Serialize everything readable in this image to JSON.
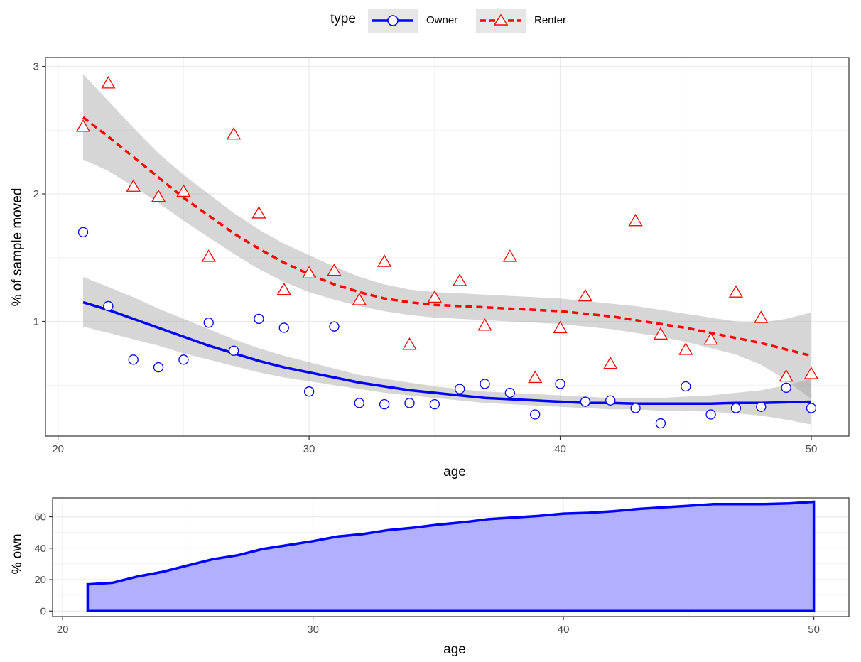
{
  "legend": {
    "title": "type",
    "items": [
      {
        "label": "Owner",
        "color": "#0000FF",
        "shape": "circle",
        "line": "solid"
      },
      {
        "label": "Renter",
        "color": "#FF0000",
        "shape": "triangle",
        "line": "dashed"
      }
    ],
    "placement": "top"
  },
  "chart_data": [
    {
      "type": "scatter",
      "xlabel": "age",
      "ylabel": "% of sample moved",
      "xlim": [
        19.5,
        51.5
      ],
      "ylim": [
        0.1,
        3.07
      ],
      "xticks": [
        20,
        30,
        40,
        50
      ],
      "yticks": [
        1,
        2,
        3
      ],
      "grid": true,
      "series": [
        {
          "name": "Owner",
          "color": "#0000FF",
          "marker": "circle",
          "x": [
            21,
            22,
            23,
            24,
            25,
            26,
            27,
            28,
            29,
            30,
            31,
            32,
            33,
            34,
            35,
            36,
            37,
            38,
            39,
            40,
            41,
            42,
            43,
            44,
            45,
            46,
            47,
            48,
            49,
            50
          ],
          "y": [
            1.7,
            1.12,
            0.7,
            0.64,
            0.7,
            0.99,
            0.77,
            1.02,
            0.95,
            0.45,
            0.96,
            0.36,
            0.35,
            0.36,
            0.35,
            0.47,
            0.51,
            0.44,
            0.27,
            0.51,
            0.37,
            0.38,
            0.32,
            0.2,
            0.49,
            0.27,
            0.32,
            0.33,
            0.48,
            0.32
          ],
          "smooth": {
            "x": [
              21,
              22,
              23,
              24,
              25,
              26,
              27,
              28,
              29,
              30,
              31,
              32,
              33,
              34,
              35,
              36,
              37,
              38,
              39,
              40,
              41,
              42,
              43,
              44,
              45,
              46,
              47,
              48,
              49,
              50
            ],
            "y": [
              1.15,
              1.09,
              1.02,
              0.95,
              0.88,
              0.81,
              0.75,
              0.69,
              0.64,
              0.6,
              0.56,
              0.52,
              0.49,
              0.46,
              0.44,
              0.42,
              0.4,
              0.39,
              0.38,
              0.37,
              0.36,
              0.36,
              0.355,
              0.355,
              0.355,
              0.355,
              0.36,
              0.36,
              0.365,
              0.37
            ],
            "lower": [
              0.96,
              0.91,
              0.86,
              0.81,
              0.75,
              0.7,
              0.65,
              0.6,
              0.56,
              0.53,
              0.5,
              0.47,
              0.44,
              0.42,
              0.4,
              0.38,
              0.36,
              0.35,
              0.34,
              0.33,
              0.32,
              0.31,
              0.31,
              0.3,
              0.3,
              0.29,
              0.28,
              0.26,
              0.23,
              0.19
            ],
            "upper": [
              1.35,
              1.27,
              1.19,
              1.1,
              1.02,
              0.94,
              0.86,
              0.79,
              0.73,
              0.68,
              0.63,
              0.58,
              0.55,
              0.52,
              0.49,
              0.47,
              0.45,
              0.44,
              0.43,
              0.42,
              0.41,
              0.4,
              0.4,
              0.4,
              0.41,
              0.42,
              0.44,
              0.46,
              0.5,
              0.55
            ]
          }
        },
        {
          "name": "Renter",
          "color": "#FF0000",
          "marker": "triangle",
          "x": [
            21,
            22,
            23,
            24,
            25,
            26,
            27,
            28,
            29,
            30,
            31,
            32,
            33,
            34,
            35,
            36,
            37,
            38,
            39,
            40,
            41,
            42,
            43,
            44,
            45,
            46,
            47,
            48,
            49,
            50
          ],
          "y": [
            2.53,
            2.87,
            2.06,
            1.98,
            2.02,
            1.51,
            2.47,
            1.85,
            1.25,
            1.38,
            1.4,
            1.17,
            1.47,
            0.82,
            1.19,
            1.32,
            0.97,
            1.51,
            0.56,
            0.95,
            1.2,
            0.67,
            1.79,
            0.9,
            0.78,
            0.86,
            1.23,
            1.03,
            0.57,
            0.59
          ],
          "smooth": {
            "x": [
              21,
              22,
              23,
              24,
              25,
              26,
              27,
              28,
              29,
              30,
              31,
              32,
              33,
              34,
              35,
              36,
              37,
              38,
              39,
              40,
              41,
              42,
              43,
              44,
              45,
              46,
              47,
              48,
              49,
              50
            ],
            "y": [
              2.6,
              2.45,
              2.29,
              2.13,
              1.97,
              1.83,
              1.69,
              1.57,
              1.46,
              1.37,
              1.29,
              1.23,
              1.18,
              1.15,
              1.13,
              1.12,
              1.11,
              1.1,
              1.09,
              1.08,
              1.06,
              1.04,
              1.01,
              0.98,
              0.95,
              0.91,
              0.87,
              0.83,
              0.78,
              0.73
            ],
            "lower": [
              2.27,
              2.18,
              2.06,
              1.93,
              1.79,
              1.66,
              1.53,
              1.41,
              1.31,
              1.23,
              1.17,
              1.12,
              1.08,
              1.05,
              1.03,
              1.02,
              1.01,
              1.0,
              0.99,
              0.98,
              0.96,
              0.94,
              0.91,
              0.88,
              0.84,
              0.79,
              0.74,
              0.66,
              0.54,
              0.39
            ],
            "upper": [
              2.94,
              2.73,
              2.52,
              2.32,
              2.15,
              2.0,
              1.85,
              1.72,
              1.61,
              1.52,
              1.43,
              1.35,
              1.29,
              1.25,
              1.23,
              1.22,
              1.21,
              1.2,
              1.19,
              1.18,
              1.16,
              1.14,
              1.12,
              1.09,
              1.06,
              1.03,
              1.0,
              0.99,
              1.02,
              1.07
            ]
          }
        }
      ]
    },
    {
      "type": "area",
      "xlabel": "age",
      "ylabel": "% own",
      "xlim": [
        19.6,
        51.4
      ],
      "ylim": [
        -3.5,
        72
      ],
      "xticks": [
        20,
        30,
        40,
        50
      ],
      "yticks": [
        0,
        20,
        40,
        60
      ],
      "grid": true,
      "series": [
        {
          "name": "",
          "color": "#0000FF",
          "fill": "#B0B0FF",
          "x": [
            21,
            22,
            23,
            24,
            25,
            26,
            27,
            28,
            29,
            30,
            31,
            32,
            33,
            34,
            35,
            36,
            37,
            38,
            39,
            40,
            41,
            42,
            43,
            44,
            45,
            46,
            47,
            48,
            49,
            50
          ],
          "y": [
            17,
            18,
            22,
            25,
            29,
            33,
            35.5,
            39.5,
            42,
            44.5,
            47.5,
            49,
            51.5,
            53,
            55,
            56.5,
            58.5,
            59.5,
            60.5,
            62,
            62.5,
            63.5,
            65,
            66,
            67,
            68,
            68,
            68,
            68.5,
            69.5
          ]
        }
      ]
    }
  ]
}
